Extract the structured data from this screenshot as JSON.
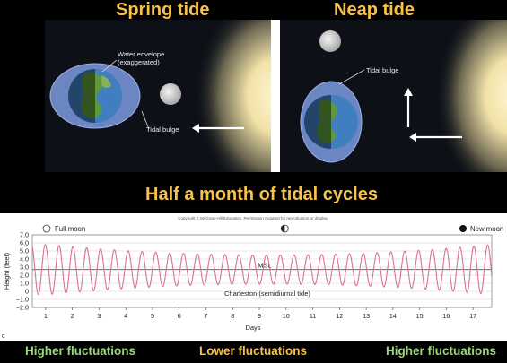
{
  "titles": {
    "spring": "Spring tide",
    "neap": "Neap tide",
    "half_month": "Half a month of tidal cycles"
  },
  "spring_panel": {
    "water_envelope": "Water envelope",
    "exaggerated": "(exaggerated)",
    "tidal_bulge": "Tidal bulge"
  },
  "neap_panel": {
    "tidal_bulge": "Tidal bulge"
  },
  "chart_data": {
    "type": "line",
    "copyright": "Copyright © McGraw-Hill Education. Permission required for reproduction or display.",
    "ylabel": "Height (feet)",
    "xlabel": "Days",
    "ylim": [
      -2.0,
      7.0
    ],
    "yticks": [
      "7.0",
      "6.0",
      "5.0",
      "4.0",
      "3.0",
      "2.0",
      "1.0",
      "0",
      "−1.0",
      "−2.0"
    ],
    "ytick_values": [
      7,
      6,
      5,
      4,
      3,
      2,
      1,
      0,
      -1,
      -2
    ],
    "xlim": [
      0.5,
      17.7
    ],
    "xticks": [
      "1",
      "2",
      "3",
      "4",
      "5",
      "6",
      "7",
      "8",
      "9",
      "10",
      "11",
      "12",
      "13",
      "14",
      "15",
      "16",
      "17"
    ],
    "xtick_values": [
      1,
      2,
      3,
      4,
      5,
      6,
      7,
      8,
      9,
      10,
      11,
      12,
      13,
      14,
      15,
      16,
      17
    ],
    "msl_label": "MSL",
    "msl_value": 2.7,
    "series_label": "Charleston (semidiurnal tide)",
    "full_moon_label": "Full moon",
    "new_moon_label": "New moon",
    "panel_letter": "c",
    "tide_model": {
      "mean": 2.7,
      "amplitude_max": 3.1,
      "amplitude_min": 1.8,
      "amplitude_min_day": 9.4,
      "cycles_per_day": 1.932,
      "start_day": 0.5,
      "end_day": 17.7
    }
  },
  "footer": {
    "left": "Higher fluctuations",
    "center": "Lower fluctuations",
    "right": "Higher fluctuations"
  },
  "colors": {
    "title": "#f7c247",
    "footer_green": "#9bd77a",
    "footer_yellow": "#f7c247",
    "tide_line": "#d9738b"
  }
}
